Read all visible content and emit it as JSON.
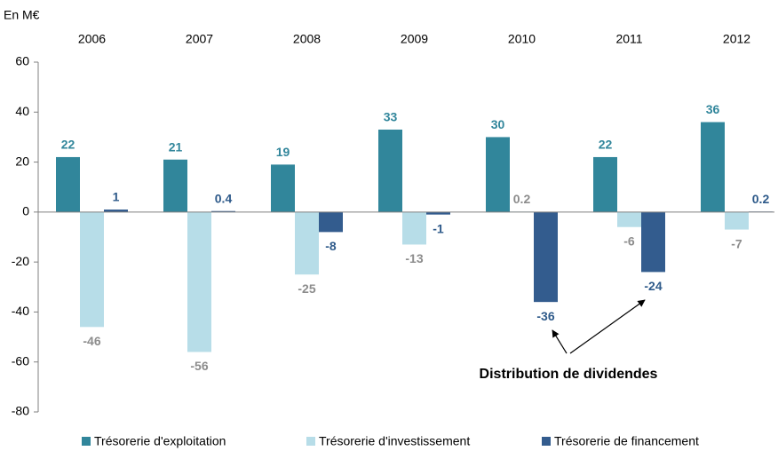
{
  "chart_data": {
    "type": "bar",
    "ylabel": "En M€",
    "categories": [
      "2006",
      "2007",
      "2008",
      "2009",
      "2010",
      "2011",
      "2012"
    ],
    "series": [
      {
        "name": "Trésorerie d'exploitation",
        "color": "#31869b",
        "label_color": "#31869b",
        "values": [
          22,
          21,
          19,
          33,
          30,
          22,
          36
        ]
      },
      {
        "name": "Trésorerie d'investissement",
        "color": "#b7dde8",
        "label_color": "#8c8c8c",
        "values": [
          -46,
          -56,
          -25,
          -13,
          0.2,
          -6,
          -7
        ]
      },
      {
        "name": "Trésorerie de financement",
        "color": "#335c8e",
        "label_color": "#2e5a8a",
        "values": [
          1,
          0.4,
          -8,
          -1,
          -36,
          -24,
          0.2
        ]
      }
    ],
    "ylim": [
      -80,
      60
    ],
    "yticks": [
      -80,
      -60,
      -40,
      -20,
      0,
      20,
      40,
      60
    ],
    "annotation": "Distribution de dividendes",
    "grid": false,
    "legend": "bottom"
  }
}
